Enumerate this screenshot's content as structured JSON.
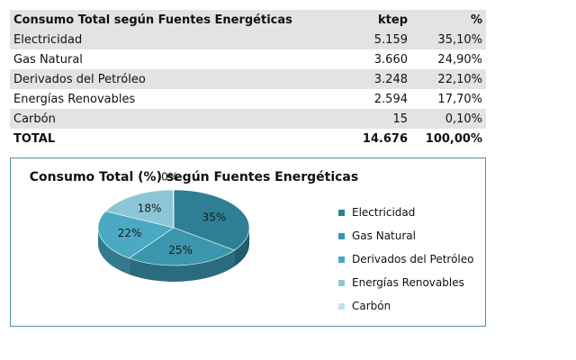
{
  "table": {
    "header": [
      "Consumo Total según Fuentes Energéticas",
      "ktep",
      "%"
    ],
    "rows": [
      [
        "Electricidad",
        "5.159",
        "35,10%"
      ],
      [
        "Gas Natural",
        "3.660",
        "24,90%"
      ],
      [
        "Derivados del Petróleo",
        "3.248",
        "22,10%"
      ],
      [
        "Energías Renovables",
        "2.594",
        "17,70%"
      ],
      [
        "Carbón",
        "15",
        "0,10%"
      ]
    ],
    "total": [
      "TOTAL",
      "14.676",
      "100,00%"
    ]
  },
  "chart_data": {
    "type": "pie",
    "title": "Consumo Total (%) según Fuentes Energéticas",
    "categories": [
      "Electricidad",
      "Gas Natural",
      "Derivados del Petróleo",
      "Energías Renovables",
      "Carbón"
    ],
    "values": [
      35.1,
      24.9,
      22.1,
      17.7,
      0.1
    ],
    "data_labels": [
      "35%",
      "25%",
      "22%",
      "18%",
      "0%"
    ],
    "colors": [
      "#2f7f94",
      "#3a96ad",
      "#4aa9c3",
      "#8cc6d6",
      "#c3e1ea"
    ],
    "legend_position": "right",
    "style": "3d"
  }
}
